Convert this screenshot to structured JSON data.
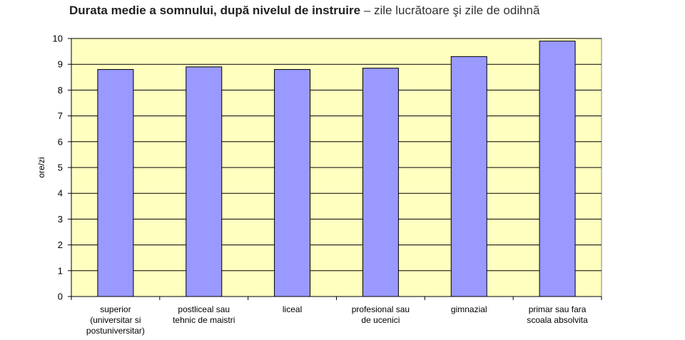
{
  "chart_data": {
    "type": "bar",
    "title": "Durata medie a somnului, după nivelul de instruire",
    "subtitle": "– zile lucrătoare şi zile de odihnă",
    "ylabel": "ore/zi",
    "xlabel": "",
    "ylim": [
      0,
      10
    ],
    "yticks": [
      0,
      1,
      2,
      3,
      4,
      5,
      6,
      7,
      8,
      9,
      10
    ],
    "grid": true,
    "categories": [
      [
        "superior",
        "(universitar si",
        "postuniversitar)"
      ],
      [
        "postliceal sau",
        "tehnic de maistri"
      ],
      [
        "liceal"
      ],
      [
        "profesional sau",
        "de ucenici"
      ],
      [
        "gimnazial"
      ],
      [
        "primar sau fara",
        "scoala absolvita"
      ]
    ],
    "values": [
      8.8,
      8.9,
      8.8,
      8.85,
      9.3,
      9.9
    ],
    "colors": {
      "plot_bg": "#ffffc0",
      "bar_fill": "#9999ff",
      "bar_stroke": "#000000",
      "grid": "#000000"
    }
  }
}
